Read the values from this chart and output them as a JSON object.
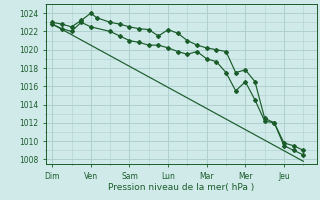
{
  "xlabel": "Pression niveau de la mer( hPa )",
  "bg_color": "#d0eaea",
  "grid_color": "#b0d0d0",
  "line_color": "#1a5c2a",
  "days": [
    "Dim",
    "Ven",
    "Sam",
    "Lun",
    "Mar",
    "Mer",
    "Jeu"
  ],
  "day_x": [
    0,
    1,
    2,
    3,
    4,
    5,
    6
  ],
  "ylim": [
    1007.5,
    1025.0
  ],
  "yticks": [
    1008,
    1010,
    1012,
    1014,
    1016,
    1018,
    1020,
    1022,
    1024
  ],
  "series": [
    {
      "x": [
        0.0,
        0.25,
        0.5,
        0.75,
        1.0,
        1.15,
        1.5,
        1.75,
        2.0,
        2.25,
        2.5,
        2.75,
        3.0,
        3.25,
        3.5,
        3.75,
        4.0,
        4.25,
        4.5,
        4.75,
        5.0,
        5.25,
        5.5,
        5.75,
        6.0,
        6.25,
        6.5
      ],
      "y": [
        1023.0,
        1022.8,
        1022.5,
        1023.2,
        1024.0,
        1023.5,
        1023.0,
        1022.8,
        1022.5,
        1022.3,
        1022.2,
        1021.5,
        1022.2,
        1021.8,
        1021.0,
        1020.5,
        1020.2,
        1020.0,
        1019.8,
        1017.5,
        1017.8,
        1016.5,
        1012.5,
        1012.0,
        1009.5,
        1009.0,
        1008.5
      ],
      "marker": true
    },
    {
      "x": [
        0.0,
        0.25,
        0.5,
        0.75,
        1.0,
        1.5,
        1.75,
        2.0,
        2.25,
        2.5,
        2.75,
        3.0,
        3.25,
        3.5,
        3.75,
        4.0,
        4.25,
        4.5,
        4.75,
        5.0,
        5.25,
        5.5,
        5.75,
        6.0,
        6.25,
        6.5
      ],
      "y": [
        1022.8,
        1022.3,
        1022.0,
        1023.0,
        1022.5,
        1022.0,
        1021.5,
        1021.0,
        1020.8,
        1020.5,
        1020.5,
        1020.2,
        1019.8,
        1019.5,
        1019.8,
        1019.0,
        1018.7,
        1017.5,
        1015.5,
        1016.5,
        1014.5,
        1012.2,
        1012.0,
        1009.8,
        1009.5,
        1009.0
      ],
      "marker": true
    },
    {
      "x": [
        0.0,
        6.5
      ],
      "y": [
        1022.8,
        1007.8
      ],
      "marker": false
    }
  ]
}
